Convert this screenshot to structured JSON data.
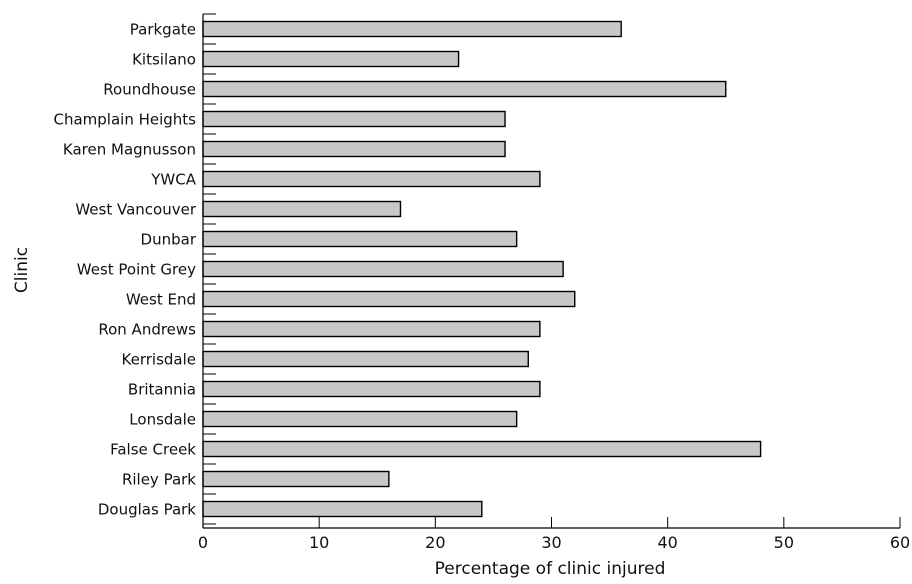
{
  "chart_data": {
    "type": "bar",
    "orientation": "horizontal",
    "title": "",
    "xlabel": "Percentage of clinic injured",
    "ylabel": "Clinic",
    "xlim": [
      0,
      60
    ],
    "xticks": [
      0,
      10,
      20,
      30,
      40,
      50,
      60
    ],
    "grid": false,
    "categories": [
      "Parkgate",
      "Kitsilano",
      "Roundhouse",
      "Champlain Heights",
      "Karen Magnusson",
      "YWCA",
      "West Vancouver",
      "Dunbar",
      "West Point Grey",
      "West End",
      "Ron Andrews",
      "Kerrisdale",
      "Britannia",
      "Lonsdale",
      "False Creek",
      "Riley Park",
      "Douglas Park"
    ],
    "values": [
      36,
      22,
      45,
      26,
      26,
      29,
      17,
      27,
      31,
      32,
      29,
      28,
      29,
      27,
      48,
      16,
      24
    ],
    "bar_color": "#c8c8c8"
  }
}
